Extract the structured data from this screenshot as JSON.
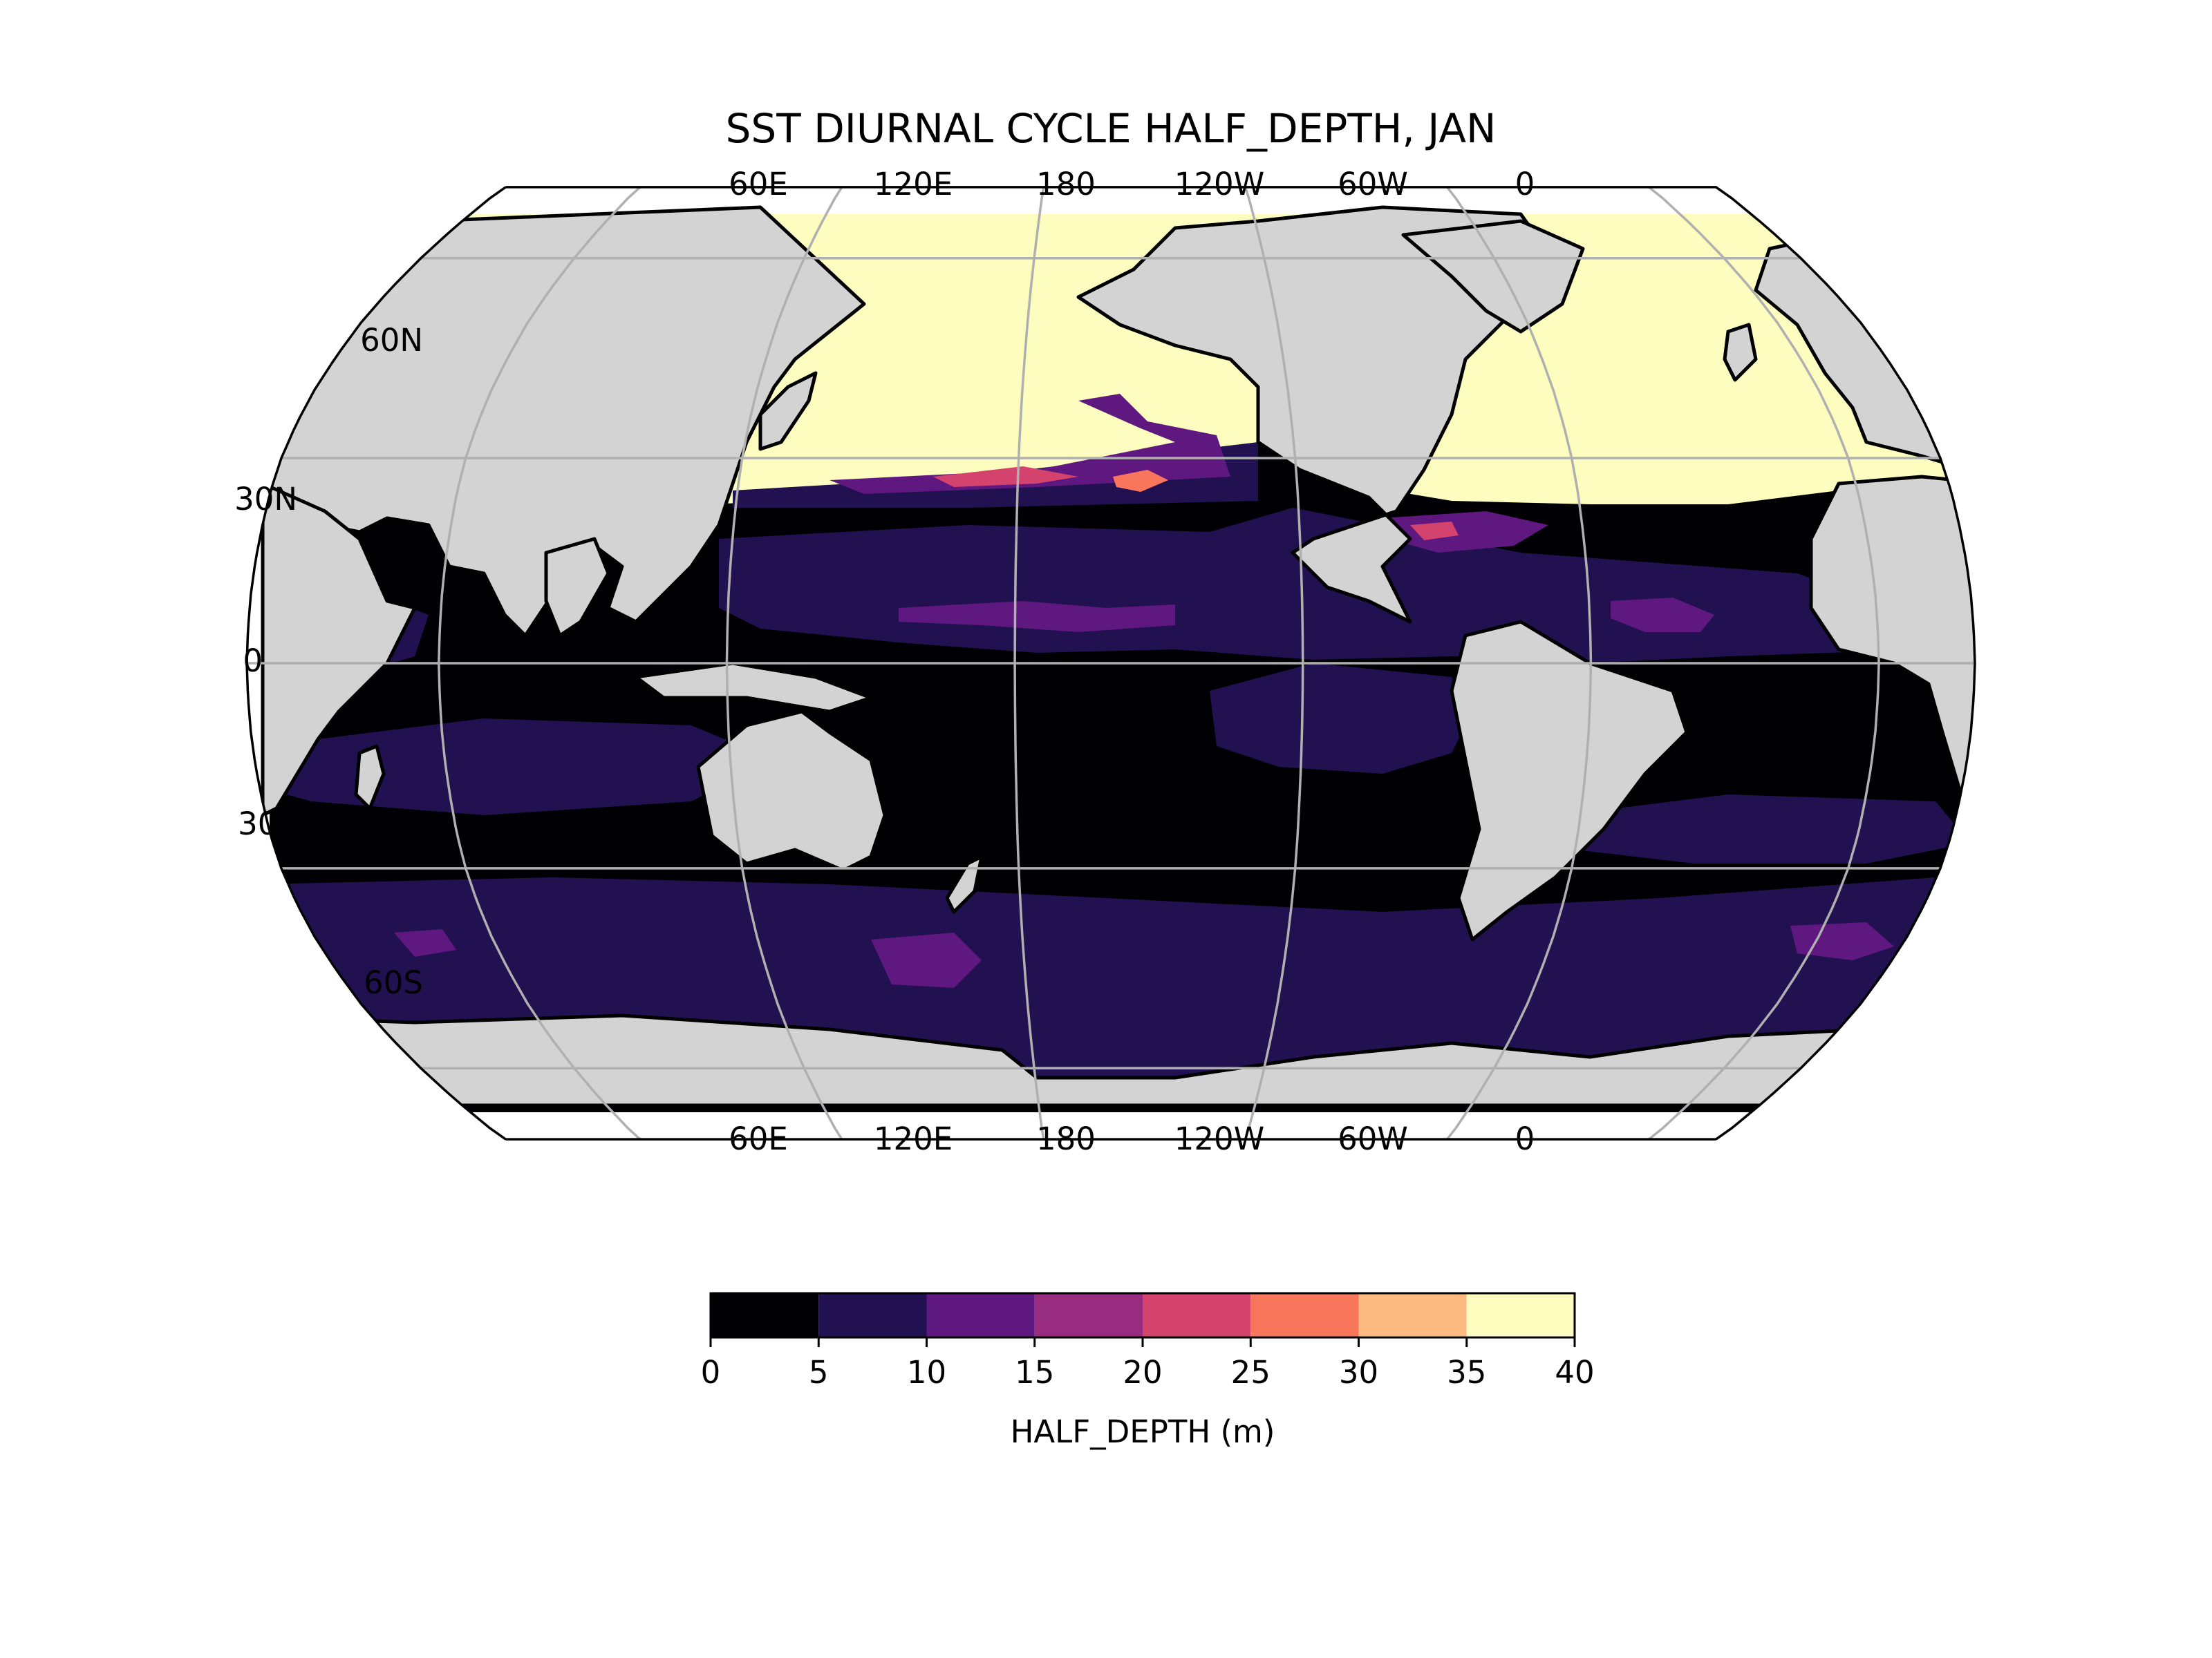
{
  "title": "SST DIURNAL CYCLE HALF_DEPTH, JAN",
  "map": {
    "projection": "robinson",
    "central_longitude": -160,
    "land_color": "#d3d3d3",
    "coastline_color": "#000000",
    "gridline_color": "#b0b0b0",
    "lon_labels": [
      "60E",
      "120E",
      "180",
      "120W",
      "60W",
      "0"
    ],
    "lat_labels": [
      "60N",
      "30N",
      "0",
      "30S",
      "60S"
    ],
    "lon_label_values": [
      60,
      120,
      180,
      -120,
      -60,
      0
    ],
    "lat_label_values": [
      60,
      30,
      0,
      -30,
      -60
    ]
  },
  "colorbar": {
    "label": "HALF_DEPTH (m)",
    "ticks": [
      "0",
      "5",
      "10",
      "15",
      "20",
      "25",
      "30",
      "35",
      "40"
    ],
    "levels": [
      0,
      5,
      10,
      15,
      20,
      25,
      30,
      35,
      40
    ],
    "colors": [
      "#000004",
      "#221150",
      "#5f187f",
      "#982d80",
      "#d3436e",
      "#f8765c",
      "#febb81",
      "#fcfdbf"
    ]
  }
}
